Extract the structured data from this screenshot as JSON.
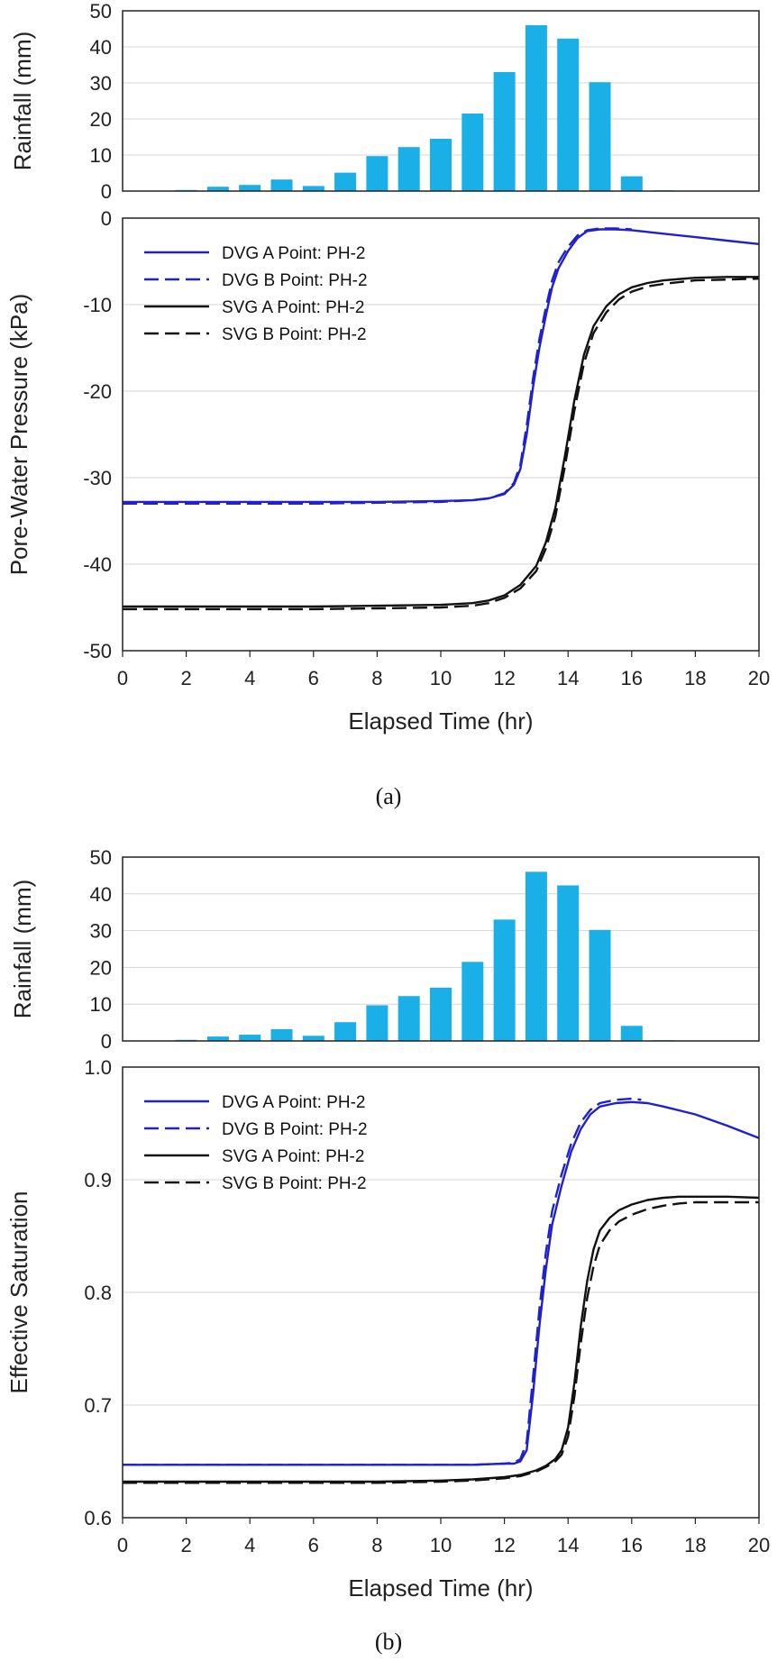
{
  "figure": {
    "panels": [
      {
        "caption": "(a)",
        "rainfall": {
          "ylabel": "Rainfall (mm)",
          "ylim": [
            0,
            50
          ],
          "yticks": [
            0,
            10,
            20,
            30,
            40,
            50
          ]
        },
        "main": {
          "ylabel": "Pore-Water Pressure (kPa)",
          "ylim": [
            -50,
            0
          ],
          "yticks": [
            -50,
            -40,
            -30,
            -20,
            -10,
            0
          ],
          "ytick_labels": [
            "-50",
            "-40",
            "-30",
            "-20",
            "-10",
            "0"
          ],
          "xlabel": "Elapsed Time (hr)"
        }
      },
      {
        "caption": "(b)",
        "rainfall": {
          "ylabel": "Rainfall (mm)",
          "ylim": [
            0,
            50
          ],
          "yticks": [
            0,
            10,
            20,
            30,
            40,
            50
          ]
        },
        "main": {
          "ylabel": "Effective Saturation",
          "ylim": [
            0.6,
            1.0
          ],
          "yticks": [
            0.6,
            0.7,
            0.8,
            0.9,
            1.0
          ],
          "ytick_labels": [
            "0.6",
            "0.7",
            "0.8",
            "0.9",
            "1.0"
          ],
          "xlabel": "Elapsed Time (hr)"
        }
      }
    ]
  },
  "chart_data": [
    {
      "type": "bar",
      "panel": "(a) rainfall",
      "categories": [
        1,
        2,
        3,
        4,
        5,
        6,
        7,
        8,
        9,
        10,
        11,
        12,
        13,
        14,
        15,
        16,
        17,
        18,
        19
      ],
      "values": [
        0.0,
        0.3,
        1.2,
        1.7,
        3.2,
        1.4,
        5.1,
        9.7,
        12.2,
        14.5,
        21.5,
        33.0,
        46.0,
        42.3,
        30.2,
        4.1,
        0.2,
        0.0,
        0.0
      ],
      "ylabel": "Rainfall (mm)",
      "xlim": [
        0,
        20
      ],
      "ylim": [
        0,
        50
      ],
      "color": "#1AAFE6",
      "grid": "horizontal"
    },
    {
      "type": "line",
      "panel": "(a) pore-water pressure",
      "xlabel": "Elapsed Time (hr)",
      "ylabel": "Pore-Water Pressure (kPa)",
      "xlim": [
        0,
        20
      ],
      "ylim": [
        -50,
        0
      ],
      "grid": "horizontal",
      "legend": "top-left",
      "series": [
        {
          "name": "DVG A Point: PH-2",
          "color": "#2020CC",
          "dash": "solid",
          "x": [
            0,
            2,
            4,
            6,
            8,
            10,
            11,
            11.5,
            12,
            12.3,
            12.5,
            12.7,
            12.9,
            13.1,
            13.3,
            13.5,
            13.7,
            14,
            14.3,
            14.6,
            15,
            15.5,
            16,
            17,
            18,
            19,
            20
          ],
          "y": [
            -32.8,
            -32.8,
            -32.8,
            -32.8,
            -32.8,
            -32.7,
            -32.6,
            -32.4,
            -31.9,
            -30.8,
            -29,
            -25,
            -19.5,
            -15,
            -11.3,
            -8,
            -5.8,
            -3.8,
            -2.3,
            -1.5,
            -1.3,
            -1.3,
            -1.4,
            -1.8,
            -2.2,
            -2.6,
            -3
          ]
        },
        {
          "name": "DVG B Point: PH-2",
          "color": "#2020CC",
          "dash": "dashed",
          "x": [
            0,
            2,
            4,
            6,
            8,
            10,
            11,
            11.5,
            12,
            12.3,
            12.5,
            12.7,
            12.9,
            13.1,
            13.3,
            13.5,
            13.7,
            14,
            14.3,
            14.6,
            15,
            15.5,
            16
          ],
          "y": [
            -33,
            -33,
            -33,
            -33,
            -32.9,
            -32.8,
            -32.6,
            -32.4,
            -31.8,
            -30.6,
            -28.5,
            -24,
            -18.5,
            -14,
            -10.4,
            -7.2,
            -5.1,
            -3.3,
            -2,
            -1.4,
            -1.2,
            -1.2,
            -1.3
          ]
        },
        {
          "name": "SVG A Point: PH-2",
          "color": "#111111",
          "dash": "solid",
          "x": [
            0,
            2,
            4,
            6,
            8,
            10,
            11,
            11.5,
            12,
            12.5,
            13,
            13.3,
            13.6,
            13.9,
            14.2,
            14.5,
            14.8,
            15.2,
            15.6,
            16,
            16.5,
            17,
            18,
            19,
            20
          ],
          "y": [
            -44.9,
            -44.9,
            -44.9,
            -44.9,
            -44.8,
            -44.7,
            -44.5,
            -44.2,
            -43.6,
            -42.4,
            -40.2,
            -37.5,
            -33.5,
            -27.5,
            -21,
            -15.8,
            -12.5,
            -10.2,
            -8.8,
            -8,
            -7.5,
            -7.2,
            -6.9,
            -6.8,
            -6.8
          ]
        },
        {
          "name": "SVG B Point: PH-2",
          "color": "#111111",
          "dash": "dashed",
          "x": [
            0,
            2,
            4,
            6,
            8,
            10,
            11,
            11.5,
            12,
            12.5,
            13,
            13.3,
            13.6,
            13.9,
            14.2,
            14.5,
            14.8,
            15.2,
            15.6,
            16,
            16.5,
            17,
            18,
            19,
            20
          ],
          "y": [
            -45.2,
            -45.2,
            -45.2,
            -45.2,
            -45.1,
            -45,
            -44.8,
            -44.5,
            -43.9,
            -42.8,
            -40.8,
            -38.2,
            -34.5,
            -28.7,
            -22.2,
            -16.8,
            -13.3,
            -10.9,
            -9.4,
            -8.5,
            -7.9,
            -7.6,
            -7.2,
            -7.1,
            -7
          ]
        }
      ]
    },
    {
      "type": "bar",
      "panel": "(b) rainfall",
      "categories": [
        1,
        2,
        3,
        4,
        5,
        6,
        7,
        8,
        9,
        10,
        11,
        12,
        13,
        14,
        15,
        16,
        17,
        18,
        19
      ],
      "values": [
        0.0,
        0.3,
        1.2,
        1.7,
        3.2,
        1.4,
        5.1,
        9.7,
        12.2,
        14.5,
        21.5,
        33.0,
        46.0,
        42.3,
        30.2,
        4.1,
        0.2,
        0.0,
        0.0
      ],
      "ylabel": "Rainfall (mm)",
      "xlim": [
        0,
        20
      ],
      "ylim": [
        0,
        50
      ],
      "color": "#1AAFE6",
      "grid": "horizontal"
    },
    {
      "type": "line",
      "panel": "(b) effective saturation",
      "xlabel": "Elapsed Time (hr)",
      "ylabel": "Effective Saturation",
      "xlim": [
        0,
        20
      ],
      "ylim": [
        0.6,
        1.0
      ],
      "grid": "horizontal",
      "legend": "top-left",
      "series": [
        {
          "name": "DVG A Point: PH-2",
          "color": "#2020CC",
          "dash": "solid",
          "x": [
            0,
            2,
            4,
            6,
            8,
            10,
            11,
            12,
            12.3,
            12.5,
            12.7,
            12.9,
            13.1,
            13.3,
            13.5,
            13.8,
            14.1,
            14.4,
            14.7,
            15,
            15.5,
            16,
            16.5,
            17,
            18,
            19,
            20
          ],
          "y": [
            0.647,
            0.647,
            0.647,
            0.647,
            0.647,
            0.647,
            0.647,
            0.648,
            0.648,
            0.65,
            0.66,
            0.71,
            0.77,
            0.82,
            0.86,
            0.895,
            0.925,
            0.945,
            0.958,
            0.965,
            0.968,
            0.969,
            0.968,
            0.965,
            0.958,
            0.948,
            0.937
          ]
        },
        {
          "name": "DVG B Point: PH-2",
          "color": "#2020CC",
          "dash": "dashed",
          "x": [
            0,
            2,
            4,
            6,
            8,
            10,
            11,
            12,
            12.3,
            12.5,
            12.7,
            12.9,
            13.1,
            13.3,
            13.5,
            13.8,
            14.1,
            14.4,
            14.7,
            15,
            15.5,
            16,
            16.3
          ],
          "y": [
            0.647,
            0.647,
            0.647,
            0.647,
            0.647,
            0.647,
            0.647,
            0.648,
            0.649,
            0.652,
            0.667,
            0.725,
            0.785,
            0.835,
            0.872,
            0.905,
            0.932,
            0.951,
            0.962,
            0.968,
            0.971,
            0.972,
            0.971
          ]
        },
        {
          "name": "SVG A Point: PH-2",
          "color": "#111111",
          "dash": "solid",
          "x": [
            0,
            2,
            4,
            6,
            8,
            10,
            11,
            12,
            12.5,
            13,
            13.3,
            13.6,
            13.8,
            14,
            14.2,
            14.4,
            14.6,
            14.8,
            15,
            15.3,
            15.6,
            16,
            16.5,
            17,
            17.5,
            18,
            19,
            20
          ],
          "y": [
            0.632,
            0.632,
            0.632,
            0.632,
            0.632,
            0.633,
            0.634,
            0.636,
            0.638,
            0.642,
            0.646,
            0.652,
            0.66,
            0.68,
            0.72,
            0.77,
            0.81,
            0.838,
            0.855,
            0.866,
            0.873,
            0.878,
            0.882,
            0.884,
            0.885,
            0.885,
            0.885,
            0.884
          ]
        },
        {
          "name": "SVG B Point: PH-2",
          "color": "#111111",
          "dash": "dashed",
          "x": [
            0,
            2,
            4,
            6,
            8,
            10,
            11,
            12,
            12.5,
            13,
            13.3,
            13.6,
            13.8,
            14,
            14.2,
            14.4,
            14.6,
            14.8,
            15,
            15.3,
            15.6,
            16,
            16.5,
            17,
            17.5,
            18,
            19,
            20
          ],
          "y": [
            0.631,
            0.631,
            0.631,
            0.631,
            0.631,
            0.632,
            0.633,
            0.635,
            0.637,
            0.641,
            0.645,
            0.65,
            0.656,
            0.672,
            0.708,
            0.755,
            0.795,
            0.823,
            0.842,
            0.855,
            0.863,
            0.869,
            0.874,
            0.877,
            0.879,
            0.88,
            0.88,
            0.88
          ]
        }
      ]
    }
  ]
}
